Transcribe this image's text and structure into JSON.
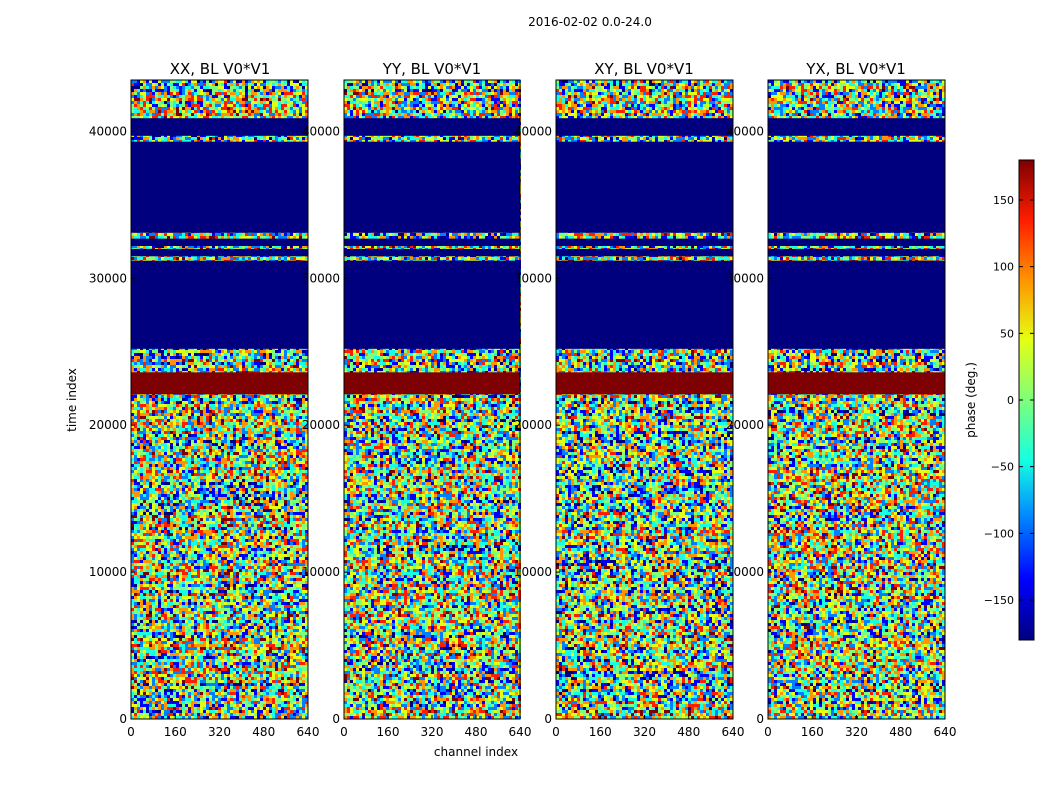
{
  "figure": {
    "suptitle": "2016-02-02 0.0-24.0"
  },
  "colors": {
    "band_low": "#00007f",
    "band_high": "#7f0000",
    "frame": "#000000"
  },
  "colormap": [
    "#00007f",
    "#0000ff",
    "#0080ff",
    "#15ffe2",
    "#7fff7a",
    "#e4ff13",
    "#ff9400",
    "#ff1d00",
    "#7f0000"
  ],
  "chart_data": {
    "type": "heatmap",
    "xlabel": "channel index",
    "ylabel": "time index",
    "xlim": [
      0,
      640
    ],
    "ylim": [
      0,
      43500
    ],
    "xticks": [
      0,
      160,
      320,
      480,
      640
    ],
    "yticks": [
      0,
      10000,
      20000,
      30000,
      40000
    ],
    "colorbar": {
      "label": "phase (deg.)",
      "range": [
        -180,
        180
      ],
      "ticks": [
        150,
        100,
        50,
        0,
        -50,
        -100,
        -150
      ],
      "tick_labels": [
        "150",
        "100",
        "50",
        "0",
        "−50",
        "−100",
        "−150"
      ]
    },
    "panels": [
      {
        "title": "XX, BL V0*V1",
        "seed": 11
      },
      {
        "title": "YY, BL V0*V1",
        "seed": 23
      },
      {
        "title": "XY, BL V0*V1",
        "seed": 37
      },
      {
        "title": "YX, BL V0*V1",
        "seed": 53
      }
    ],
    "bands": [
      {
        "from": 25200,
        "to": 31200,
        "phase": -180
      },
      {
        "from": 31500,
        "to": 32000,
        "phase": -180
      },
      {
        "from": 32200,
        "to": 32700,
        "phase": -180
      },
      {
        "from": 33100,
        "to": 39300,
        "phase": -180
      },
      {
        "from": 39700,
        "to": 40900,
        "phase": -180
      },
      {
        "from": 22100,
        "to": 23600,
        "phase": 180
      }
    ]
  }
}
